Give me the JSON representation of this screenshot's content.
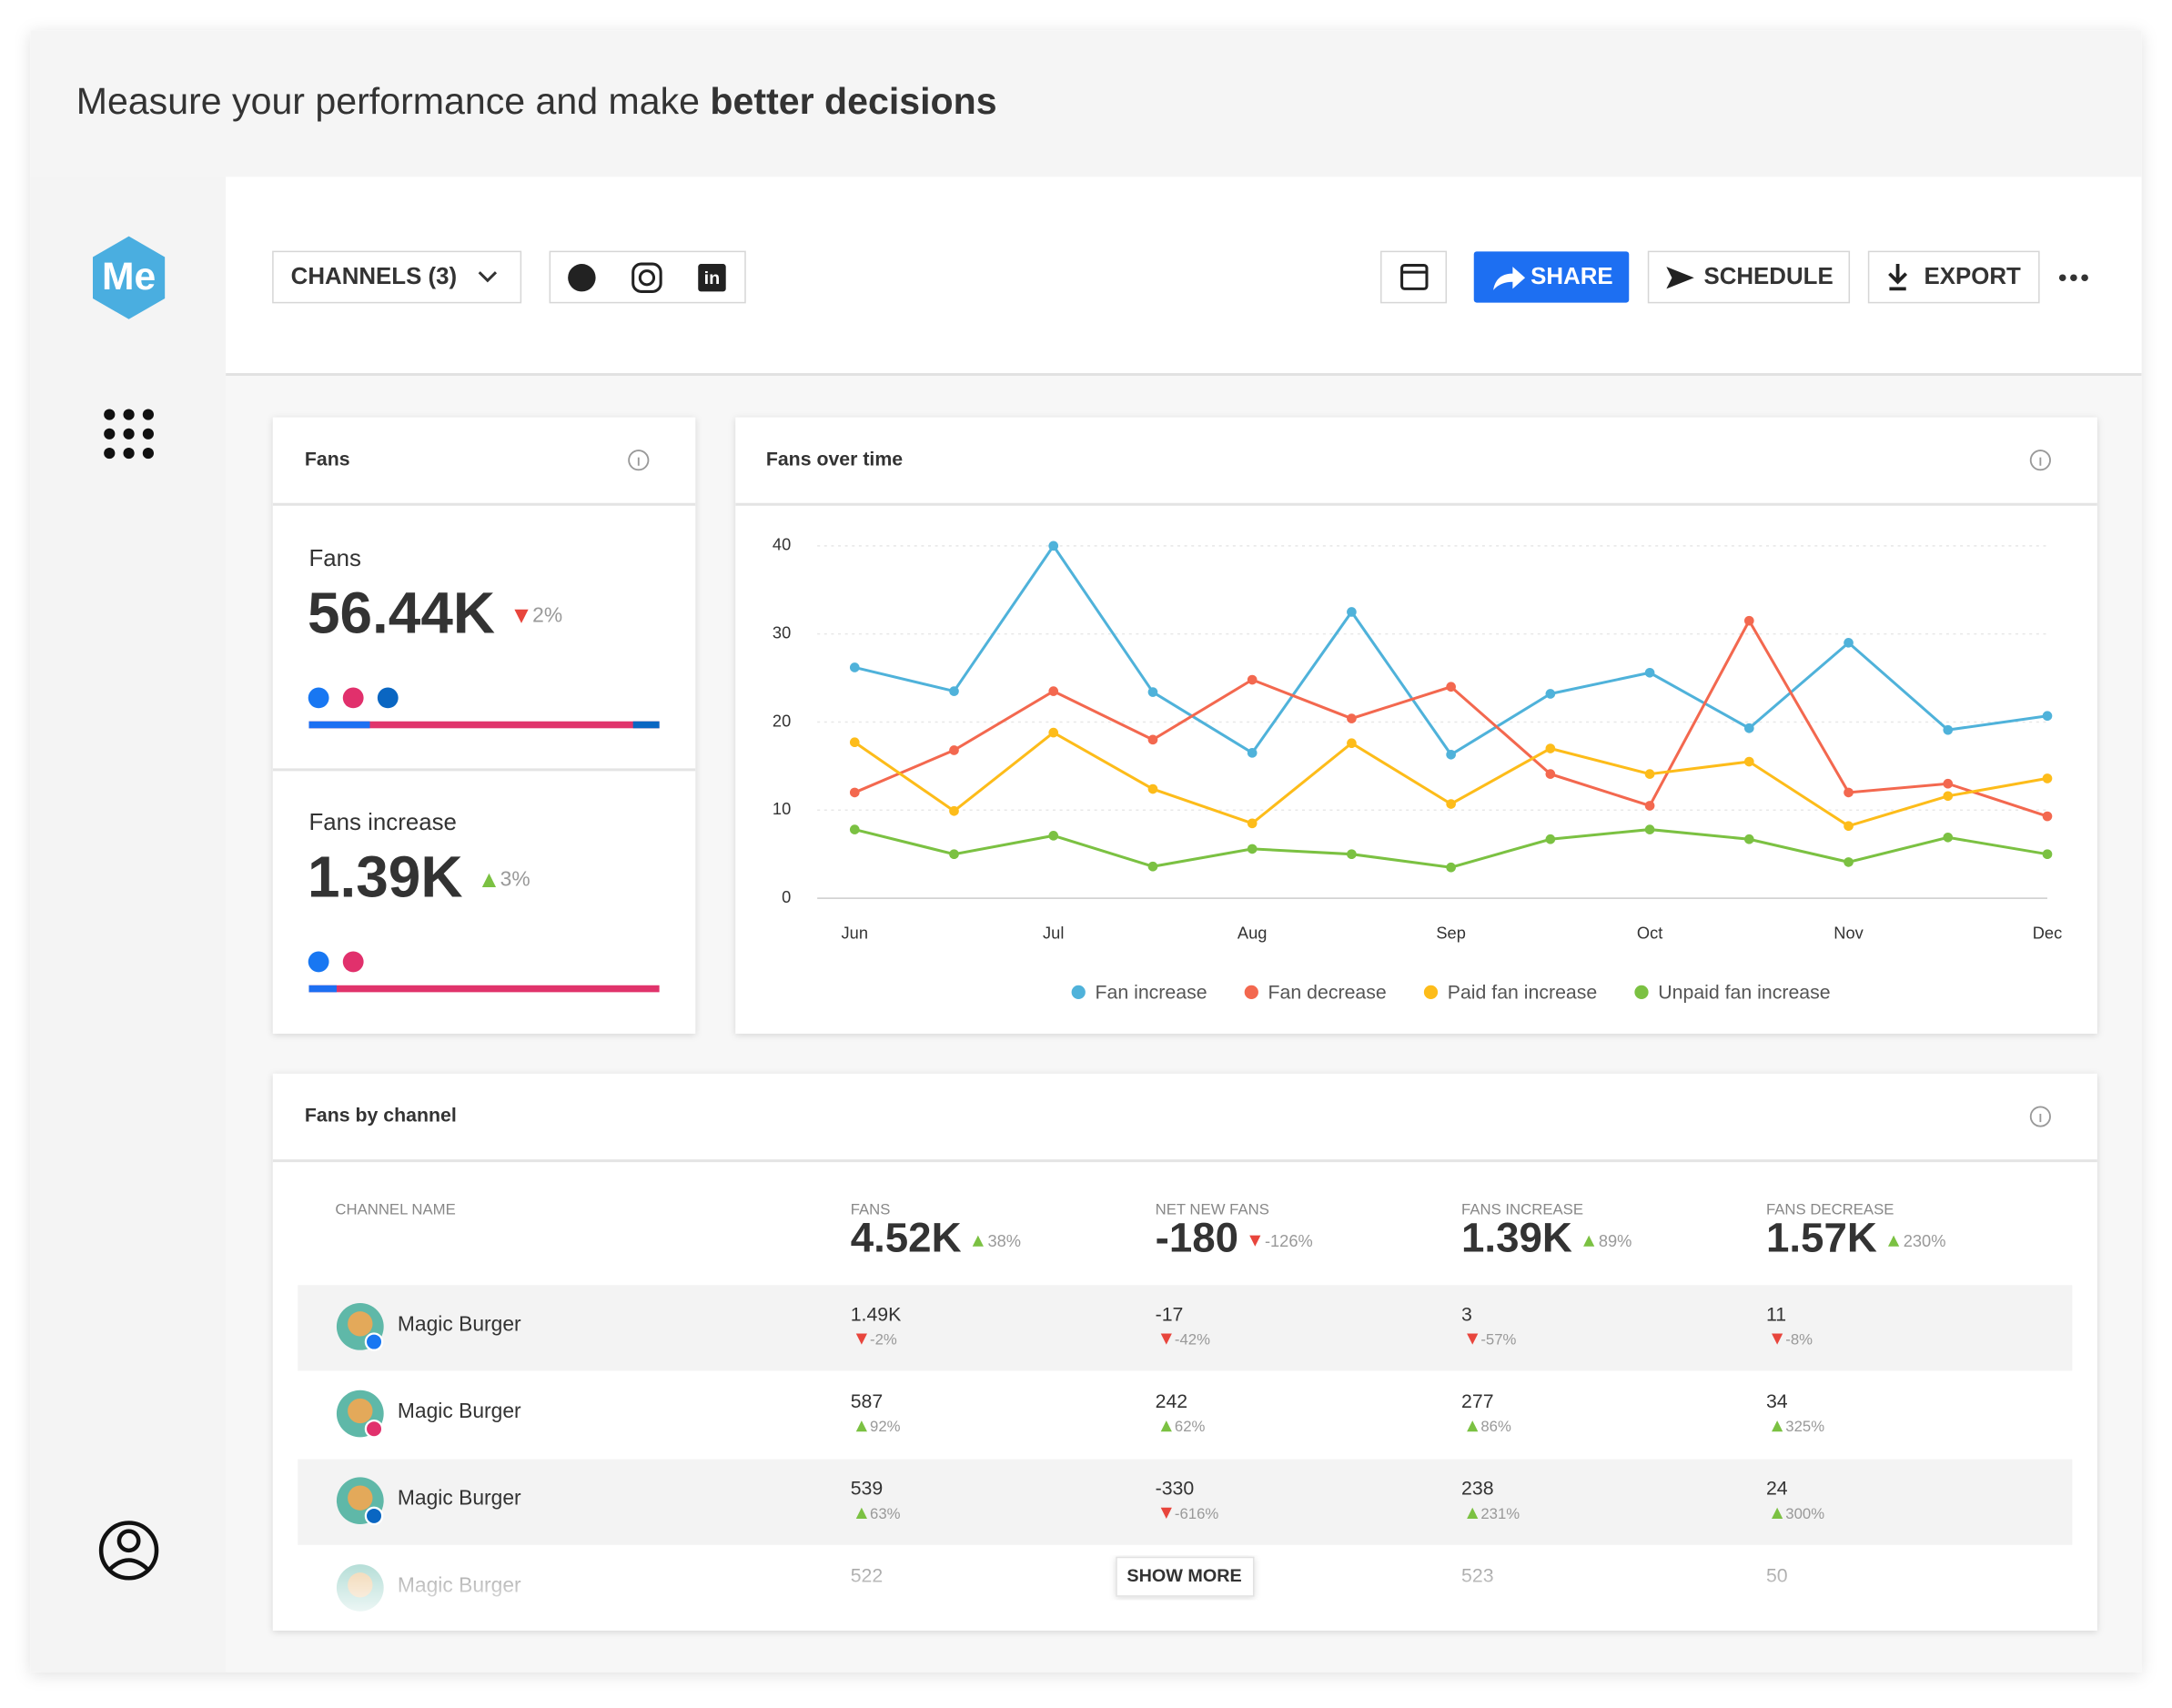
{
  "header": {
    "title": "Measure your performance and make",
    "title_emphasis": "better decisions"
  },
  "sidebar": {
    "logo": "Me"
  },
  "toolbar": {
    "channels": "CHANNELS (3)",
    "share": "SHARE",
    "schedule": "SCHEDULE",
    "export": "EXPORT"
  },
  "fans_card": {
    "title": "Fans",
    "metrics": [
      {
        "label": "Fans",
        "value": "56.44K",
        "change": "2%",
        "trend": "down",
        "networks": [
          "facebook",
          "instagram",
          "linkedin"
        ]
      },
      {
        "label": "Fans increase",
        "value": "1.39K",
        "change": "3%",
        "trend": "up",
        "networks": [
          "facebook",
          "instagram"
        ]
      }
    ]
  },
  "chart_data": {
    "type": "line",
    "title": "Fans over time",
    "categories": [
      "Jun",
      null,
      "Jul",
      null,
      "Aug",
      null,
      "Sep",
      null,
      "Oct",
      null,
      "Nov",
      null,
      "Dec"
    ],
    "series": [
      {
        "name": "Fan increase",
        "color": "#4fb2da",
        "values": [
          26.2,
          23.5,
          40,
          23.4,
          16.5,
          32.5,
          16.3,
          23.2,
          25.6,
          19.3,
          29,
          19.1,
          20.7
        ]
      },
      {
        "name": "Fan decrease",
        "color": "#f3684f",
        "values": [
          12,
          16.8,
          23.5,
          18,
          24.8,
          20.4,
          24,
          14.1,
          10.5,
          31.5,
          12,
          13,
          9.3
        ]
      },
      {
        "name": "Paid fan increase",
        "color": "#fdbc1a",
        "values": [
          17.7,
          9.9,
          18.8,
          12.4,
          8.5,
          17.6,
          10.7,
          17,
          14.1,
          15.5,
          8.2,
          11.6,
          13.6
        ]
      },
      {
        "name": "Unpaid fan increase",
        "color": "#7bc142",
        "values": [
          7.8,
          5,
          7.1,
          3.6,
          5.6,
          5,
          3.5,
          6.7,
          7.8,
          6.7,
          4.1,
          6.9,
          5
        ]
      }
    ],
    "ylim": [
      0,
      40
    ],
    "yticks": [
      0,
      10,
      20,
      30,
      40
    ],
    "grid": true
  },
  "table": {
    "title": "Fans by channel",
    "columns": [
      {
        "label": "CHANNEL NAME"
      },
      {
        "label": "FANS",
        "total": "4.52K",
        "change": "38%",
        "trend": "up"
      },
      {
        "label": "NET NEW FANS",
        "total": "-180",
        "change": "-126%",
        "trend": "down"
      },
      {
        "label": "FANS INCREASE",
        "total": "1.39K",
        "change": "89%",
        "trend": "up"
      },
      {
        "label": "FANS DECREASE",
        "total": "1.57K",
        "change": "230%",
        "trend": "up"
      }
    ],
    "rows": [
      {
        "name": "Magic Burger",
        "network": "facebook",
        "cells": [
          {
            "value": "1.49K",
            "change": "-2%",
            "trend": "down"
          },
          {
            "value": "-17",
            "change": "-42%",
            "trend": "down"
          },
          {
            "value": "3",
            "change": "-57%",
            "trend": "down"
          },
          {
            "value": "11",
            "change": "-8%",
            "trend": "down"
          }
        ]
      },
      {
        "name": "Magic Burger",
        "network": "instagram",
        "cells": [
          {
            "value": "587",
            "change": "92%",
            "trend": "up"
          },
          {
            "value": "242",
            "change": "62%",
            "trend": "up"
          },
          {
            "value": "277",
            "change": "86%",
            "trend": "up"
          },
          {
            "value": "34",
            "change": "325%",
            "trend": "up"
          }
        ]
      },
      {
        "name": "Magic Burger",
        "network": "linkedin",
        "cells": [
          {
            "value": "539",
            "change": "63%",
            "trend": "up"
          },
          {
            "value": "-330",
            "change": "-616%",
            "trend": "down"
          },
          {
            "value": "238",
            "change": "231%",
            "trend": "up"
          },
          {
            "value": "24",
            "change": "300%",
            "trend": "up"
          }
        ]
      },
      {
        "name": "Magic Burger",
        "cells": [
          {
            "value": "522"
          },
          null,
          {
            "value": "523"
          },
          {
            "value": "50"
          }
        ]
      }
    ],
    "show_more": "SHOW MORE"
  }
}
